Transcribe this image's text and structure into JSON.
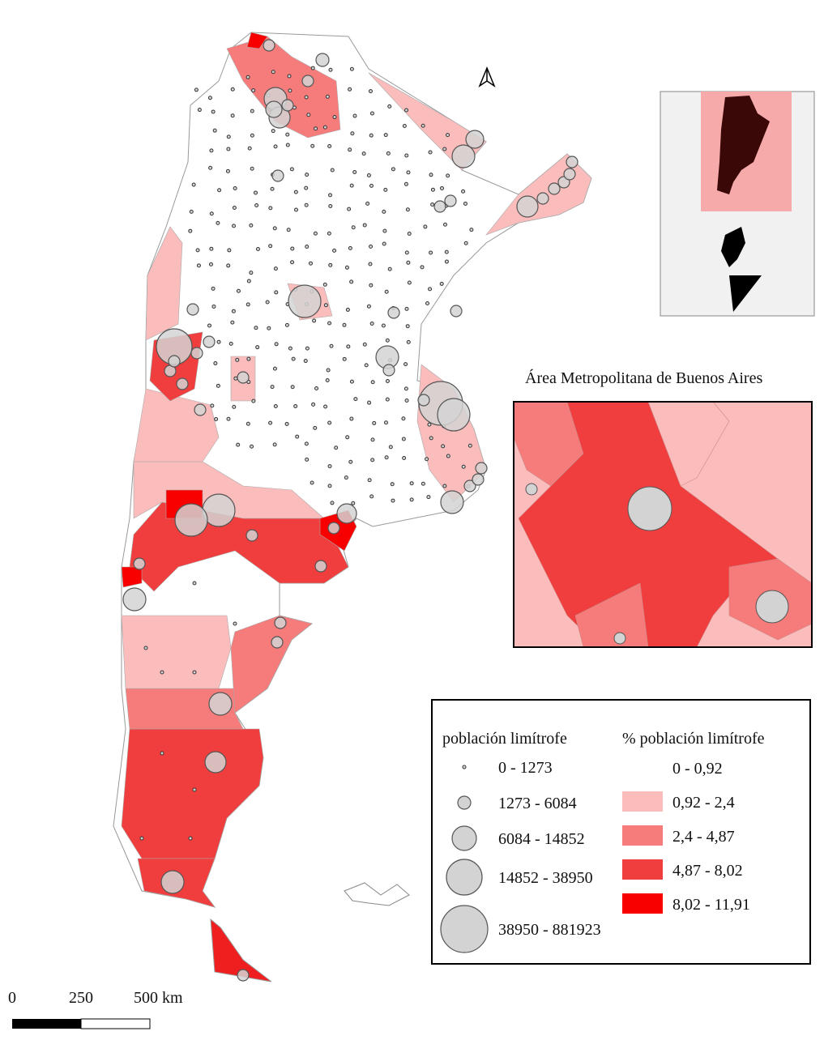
{
  "inset": {
    "title": "Área Metropolitana de Buenos Aires"
  },
  "legend": {
    "circles_title": "población limítrofe",
    "circle_classes": [
      "0 - 1273",
      "1273 - 6084",
      "6084 - 14852",
      "14852 - 38950",
      "38950 - 881923"
    ],
    "circle_color": "#d3d3d3",
    "choropleth_title": "% población limítrofe",
    "choropleth_classes": [
      {
        "label": "0 - 0,92",
        "color": "#ffffff"
      },
      {
        "label": "0,92 - 2,4",
        "color": "#fbbcbc"
      },
      {
        "label": "2,4 - 4,87",
        "color": "#f67c7c"
      },
      {
        "label": "4,87 - 8,02",
        "color": "#f03e3e"
      },
      {
        "label": "8,02 - 11,91",
        "color": "#f90000"
      }
    ]
  },
  "scale_bar": {
    "labels": [
      "0",
      "250",
      "500 km"
    ]
  }
}
